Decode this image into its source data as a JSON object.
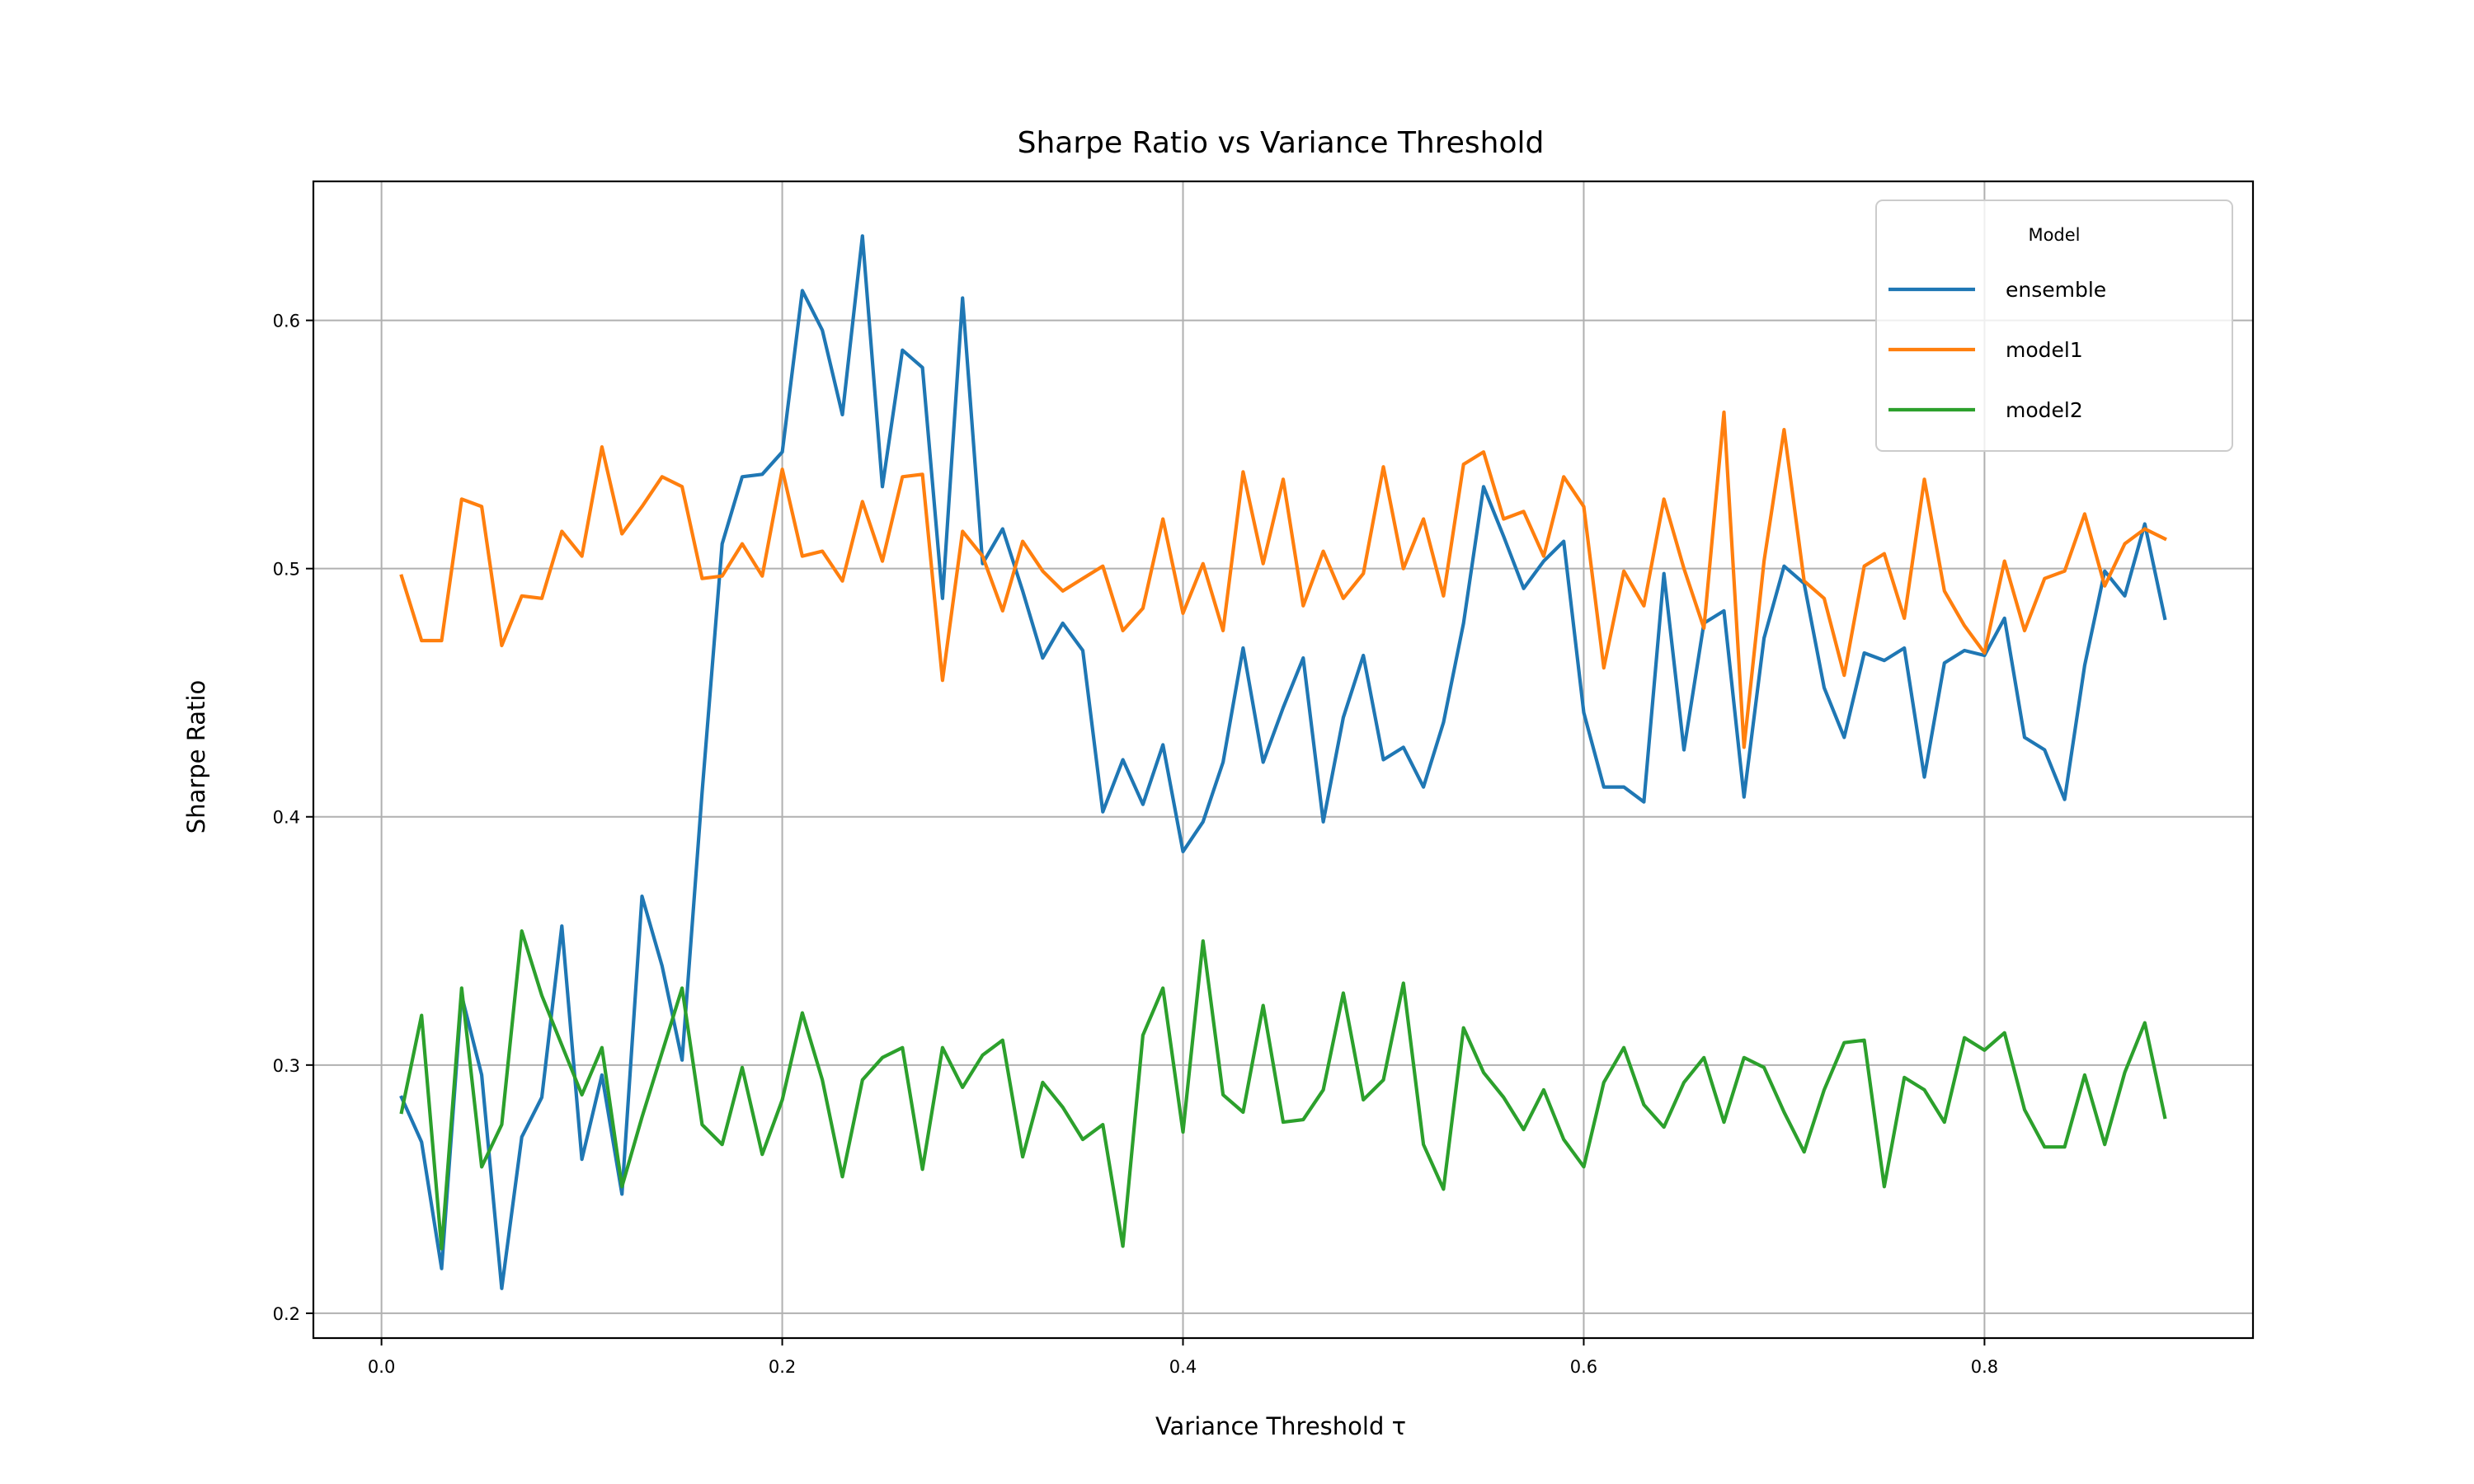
{
  "chart_data": {
    "type": "line",
    "title": "Sharpe Ratio vs Variance Threshold",
    "xlabel": "Variance Threshold τ",
    "ylabel": "Sharpe Ratio",
    "xlim": [
      -0.034,
      0.934
    ],
    "ylim": [
      0.19,
      0.656
    ],
    "xticks": [
      0.0,
      0.2,
      0.4,
      0.6,
      0.8
    ],
    "xtick_labels": [
      "0.0",
      "0.2",
      "0.4",
      "0.6",
      "0.8"
    ],
    "yticks": [
      0.2,
      0.3,
      0.4,
      0.5,
      0.6
    ],
    "ytick_labels": [
      "0.2",
      "0.3",
      "0.4",
      "0.5",
      "0.6"
    ],
    "grid": true,
    "legend": {
      "title": "Model",
      "position": "top-right"
    },
    "x": [
      0.01,
      0.02,
      0.03,
      0.04,
      0.05,
      0.06,
      0.07,
      0.08,
      0.09,
      0.1,
      0.11,
      0.12,
      0.13,
      0.14,
      0.15,
      0.16,
      0.17,
      0.18,
      0.19,
      0.2,
      0.21,
      0.22,
      0.23,
      0.24,
      0.25,
      0.26,
      0.27,
      0.28,
      0.29,
      0.3,
      0.31,
      0.32,
      0.33,
      0.34,
      0.35,
      0.36,
      0.37,
      0.38,
      0.39,
      0.4,
      0.41,
      0.42,
      0.43,
      0.44,
      0.45,
      0.46,
      0.47,
      0.48,
      0.49,
      0.5,
      0.51,
      0.52,
      0.53,
      0.54,
      0.55,
      0.56,
      0.57,
      0.58,
      0.59,
      0.6,
      0.61,
      0.62,
      0.63,
      0.64,
      0.65,
      0.66,
      0.67,
      0.68,
      0.69,
      0.7,
      0.71,
      0.72,
      0.73,
      0.74,
      0.75,
      0.76,
      0.77,
      0.78,
      0.79,
      0.8,
      0.81,
      0.82,
      0.83,
      0.84,
      0.85,
      0.86,
      0.87,
      0.88,
      0.89
    ],
    "series": [
      {
        "name": "ensemble",
        "color": "#1f77b4",
        "values": [
          0.287,
          0.269,
          0.218,
          0.328,
          0.296,
          0.21,
          0.271,
          0.287,
          0.356,
          0.262,
          0.296,
          0.248,
          0.368,
          0.34,
          0.302,
          0.41,
          0.51,
          0.537,
          0.538,
          0.547,
          0.612,
          0.596,
          0.562,
          0.634,
          0.533,
          0.588,
          0.581,
          0.488,
          0.609,
          0.502,
          0.516,
          0.491,
          0.464,
          0.478,
          0.467,
          0.402,
          0.423,
          0.405,
          0.429,
          0.386,
          0.398,
          0.422,
          0.468,
          0.422,
          0.444,
          0.464,
          0.398,
          0.44,
          0.465,
          0.423,
          0.428,
          0.412,
          0.438,
          0.478,
          0.533,
          0.513,
          0.492,
          0.503,
          0.511,
          0.442,
          0.412,
          0.412,
          0.406,
          0.498,
          0.427,
          0.478,
          0.483,
          0.408,
          0.472,
          0.501,
          0.494,
          0.452,
          0.432,
          0.466,
          0.463,
          0.468,
          0.416,
          0.462,
          0.467,
          0.465,
          0.48,
          0.432,
          0.427,
          0.407,
          0.461,
          0.499,
          0.489,
          0.518,
          0.48
        ]
      },
      {
        "name": "model1",
        "color": "#ff7f0e",
        "values": [
          0.497,
          0.471,
          0.471,
          0.528,
          0.525,
          0.469,
          0.489,
          0.488,
          0.515,
          0.505,
          0.549,
          0.514,
          0.525,
          0.537,
          0.533,
          0.496,
          0.497,
          0.51,
          0.497,
          0.54,
          0.505,
          0.507,
          0.495,
          0.527,
          0.503,
          0.537,
          0.538,
          0.455,
          0.515,
          0.505,
          0.483,
          0.511,
          0.499,
          0.491,
          0.496,
          0.501,
          0.475,
          0.484,
          0.52,
          0.482,
          0.502,
          0.475,
          0.539,
          0.502,
          0.536,
          0.485,
          0.507,
          0.488,
          0.498,
          0.541,
          0.5,
          0.52,
          0.489,
          0.542,
          0.547,
          0.52,
          0.523,
          0.505,
          0.537,
          0.525,
          0.46,
          0.499,
          0.485,
          0.528,
          0.5,
          0.476,
          0.563,
          0.428,
          0.503,
          0.556,
          0.495,
          0.488,
          0.457,
          0.501,
          0.506,
          0.48,
          0.536,
          0.491,
          0.477,
          0.466,
          0.503,
          0.475,
          0.496,
          0.499,
          0.522,
          0.493,
          0.51,
          0.516,
          0.512
        ]
      },
      {
        "name": "model2",
        "color": "#2ca02c",
        "values": [
          0.281,
          0.32,
          0.226,
          0.331,
          0.259,
          0.276,
          0.354,
          0.328,
          0.308,
          0.288,
          0.307,
          0.251,
          0.279,
          0.305,
          0.331,
          0.276,
          0.268,
          0.299,
          0.264,
          0.286,
          0.321,
          0.294,
          0.255,
          0.294,
          0.303,
          0.307,
          0.258,
          0.307,
          0.291,
          0.304,
          0.31,
          0.263,
          0.293,
          0.283,
          0.27,
          0.276,
          0.227,
          0.312,
          0.331,
          0.273,
          0.35,
          0.288,
          0.281,
          0.324,
          0.277,
          0.278,
          0.29,
          0.329,
          0.286,
          0.294,
          0.333,
          0.268,
          0.25,
          0.315,
          0.297,
          0.287,
          0.274,
          0.29,
          0.27,
          0.259,
          0.293,
          0.307,
          0.284,
          0.275,
          0.293,
          0.303,
          0.277,
          0.303,
          0.299,
          0.281,
          0.265,
          0.29,
          0.309,
          0.31,
          0.251,
          0.295,
          0.29,
          0.277,
          0.311,
          0.306,
          0.313,
          0.282,
          0.267,
          0.267,
          0.296,
          0.268,
          0.297,
          0.317,
          0.279
        ]
      }
    ]
  }
}
